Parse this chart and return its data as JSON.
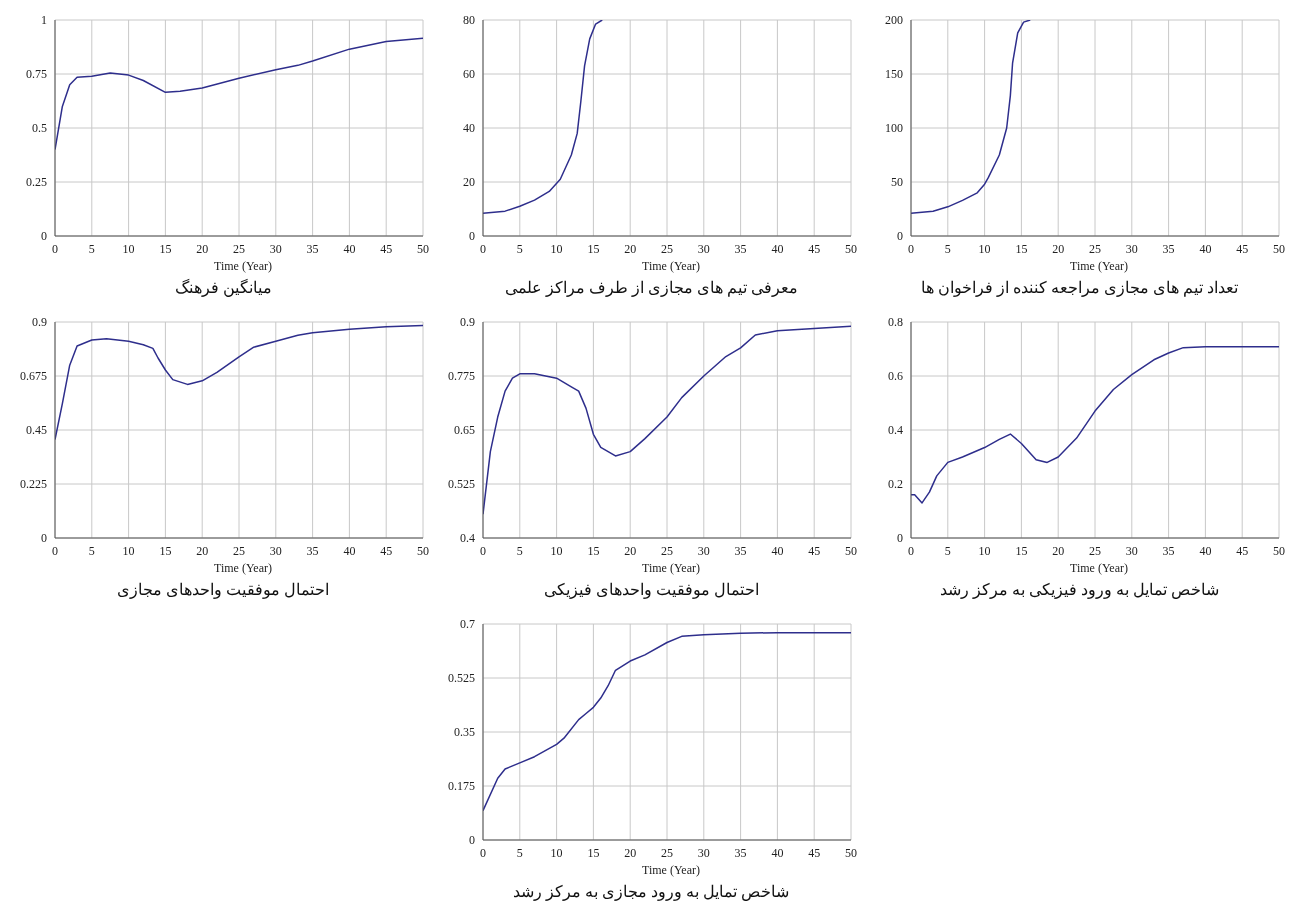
{
  "chart_data": [
    {
      "type": "line",
      "title": "میانگین فرهنگ",
      "xlabel": "Time (Year)",
      "color": "#2e2e8c",
      "grid": true,
      "marker": "none",
      "xlim": [
        0,
        50
      ],
      "xticks": [
        0,
        5,
        10,
        15,
        20,
        25,
        30,
        35,
        40,
        45,
        50
      ],
      "ylim": [
        0,
        1
      ],
      "yticks": [
        0,
        0.25,
        0.5,
        0.75,
        1
      ],
      "x": [
        0,
        1,
        2,
        3,
        5,
        7.5,
        10,
        12,
        15,
        17,
        20,
        25,
        30,
        33,
        35,
        40,
        45,
        50
      ],
      "values": [
        0.4,
        0.6,
        0.7,
        0.735,
        0.74,
        0.755,
        0.745,
        0.72,
        0.665,
        0.67,
        0.685,
        0.73,
        0.77,
        0.79,
        0.81,
        0.865,
        0.9,
        0.915
      ]
    },
    {
      "type": "line",
      "title": "معرفی تیم های مجازی از طرف مراکز علمی",
      "xlabel": "Time (Year)",
      "color": "#2e2e8c",
      "grid": true,
      "marker": "none",
      "xlim": [
        0,
        50
      ],
      "xticks": [
        0,
        5,
        10,
        15,
        20,
        25,
        30,
        35,
        40,
        45,
        50
      ],
      "ylim": [
        0,
        80
      ],
      "yticks": [
        0,
        20,
        40,
        60,
        80
      ],
      "x": [
        0,
        3,
        5,
        7,
        9,
        10.5,
        12,
        12.8,
        13.3,
        13.8,
        14.5,
        15.3,
        16.2
      ],
      "values": [
        8.4,
        9.2,
        11,
        13.3,
        16.5,
        21,
        30,
        38,
        50,
        63,
        73,
        78.5,
        80
      ]
    },
    {
      "type": "line",
      "title": "تعداد تیم های مجازی مراجعه کننده از فراخوان ها",
      "xlabel": "Time (Year)",
      "color": "#2e2e8c",
      "grid": true,
      "marker": "none",
      "xlim": [
        0,
        50
      ],
      "xticks": [
        0,
        5,
        10,
        15,
        20,
        25,
        30,
        35,
        40,
        45,
        50
      ],
      "ylim": [
        0,
        200
      ],
      "yticks": [
        0,
        50,
        100,
        150,
        200
      ],
      "x": [
        0,
        3,
        5,
        7,
        9,
        10,
        10.5,
        12,
        13,
        13.5,
        13.8,
        14.5,
        15.3,
        16.2
      ],
      "values": [
        21,
        23,
        27,
        33,
        40,
        48,
        54,
        75,
        100,
        130,
        160,
        188,
        198,
        200
      ]
    },
    {
      "type": "line",
      "title": "احتمال موفقیت واحدهای مجازی",
      "xlabel": "Time (Year)",
      "color": "#2e2e8c",
      "grid": true,
      "marker": "none",
      "xlim": [
        0,
        50
      ],
      "xticks": [
        0,
        5,
        10,
        15,
        20,
        25,
        30,
        35,
        40,
        45,
        50
      ],
      "ylim": [
        0,
        0.9
      ],
      "yticks": [
        0,
        0.225,
        0.45,
        0.675,
        0.9
      ],
      "x": [
        0,
        1,
        2,
        3,
        5,
        7,
        10,
        12,
        13.3,
        14,
        15,
        16,
        18,
        20,
        22,
        25,
        27,
        30,
        33,
        35,
        40,
        45,
        50
      ],
      "values": [
        0.41,
        0.56,
        0.72,
        0.8,
        0.825,
        0.83,
        0.82,
        0.805,
        0.79,
        0.75,
        0.7,
        0.66,
        0.64,
        0.655,
        0.69,
        0.755,
        0.795,
        0.82,
        0.845,
        0.855,
        0.87,
        0.88,
        0.885
      ]
    },
    {
      "type": "line",
      "title": "احتمال موفقیت واحدهای فیزیکی",
      "xlabel": "Time (Year)",
      "color": "#2e2e8c",
      "grid": true,
      "marker": "none",
      "xlim": [
        0,
        50
      ],
      "xticks": [
        0,
        5,
        10,
        15,
        20,
        25,
        30,
        35,
        40,
        45,
        50
      ],
      "ylim": [
        0.4,
        0.9
      ],
      "yticks": [
        0.4,
        0.525,
        0.65,
        0.775,
        0.9
      ],
      "x": [
        0,
        1,
        2,
        3,
        4,
        5,
        7,
        10,
        12,
        13,
        14,
        15,
        16,
        18,
        20,
        22,
        25,
        27,
        30,
        33,
        35,
        37,
        40,
        45,
        50
      ],
      "values": [
        0.455,
        0.6,
        0.68,
        0.74,
        0.77,
        0.78,
        0.78,
        0.77,
        0.75,
        0.74,
        0.7,
        0.64,
        0.61,
        0.59,
        0.6,
        0.63,
        0.68,
        0.725,
        0.775,
        0.82,
        0.84,
        0.87,
        0.88,
        0.885,
        0.89
      ]
    },
    {
      "type": "line",
      "title": "شاخص تمایل به ورود فیزیکی به مرکز رشد",
      "xlabel": "Time (Year)",
      "color": "#2e2e8c",
      "grid": true,
      "marker": "none",
      "xlim": [
        0,
        50
      ],
      "xticks": [
        0,
        5,
        10,
        15,
        20,
        25,
        30,
        35,
        40,
        45,
        50
      ],
      "ylim": [
        0,
        0.8
      ],
      "yticks": [
        0,
        0.2,
        0.4,
        0.6,
        0.8
      ],
      "x": [
        0,
        0.5,
        1.5,
        2.5,
        3.5,
        5,
        7,
        10,
        12,
        13.5,
        15,
        17,
        18.5,
        20,
        22.5,
        25,
        27.5,
        30,
        33,
        35,
        37,
        40,
        50
      ],
      "values": [
        0.16,
        0.16,
        0.13,
        0.17,
        0.23,
        0.28,
        0.3,
        0.335,
        0.365,
        0.385,
        0.35,
        0.29,
        0.28,
        0.3,
        0.37,
        0.47,
        0.55,
        0.605,
        0.66,
        0.685,
        0.705,
        0.708,
        0.708
      ]
    },
    {
      "type": "line",
      "title": "شاخص تمایل به ورود مجازی به مرکز رشد",
      "xlabel": "Time (Year)",
      "color": "#2e2e8c",
      "grid": true,
      "marker": "none",
      "xlim": [
        0,
        50
      ],
      "xticks": [
        0,
        5,
        10,
        15,
        20,
        25,
        30,
        35,
        40,
        45,
        50
      ],
      "ylim": [
        0,
        0.7
      ],
      "yticks": [
        0,
        0.175,
        0.35,
        0.525,
        0.7
      ],
      "x": [
        0,
        2,
        3,
        5,
        7,
        10,
        11,
        13,
        14,
        15,
        16,
        17,
        18,
        20,
        22,
        25,
        27,
        30,
        35,
        40,
        50
      ],
      "values": [
        0.095,
        0.2,
        0.23,
        0.25,
        0.27,
        0.31,
        0.33,
        0.39,
        0.41,
        0.43,
        0.46,
        0.5,
        0.55,
        0.58,
        0.6,
        0.64,
        0.66,
        0.665,
        0.67,
        0.672,
        0.672
      ]
    }
  ]
}
